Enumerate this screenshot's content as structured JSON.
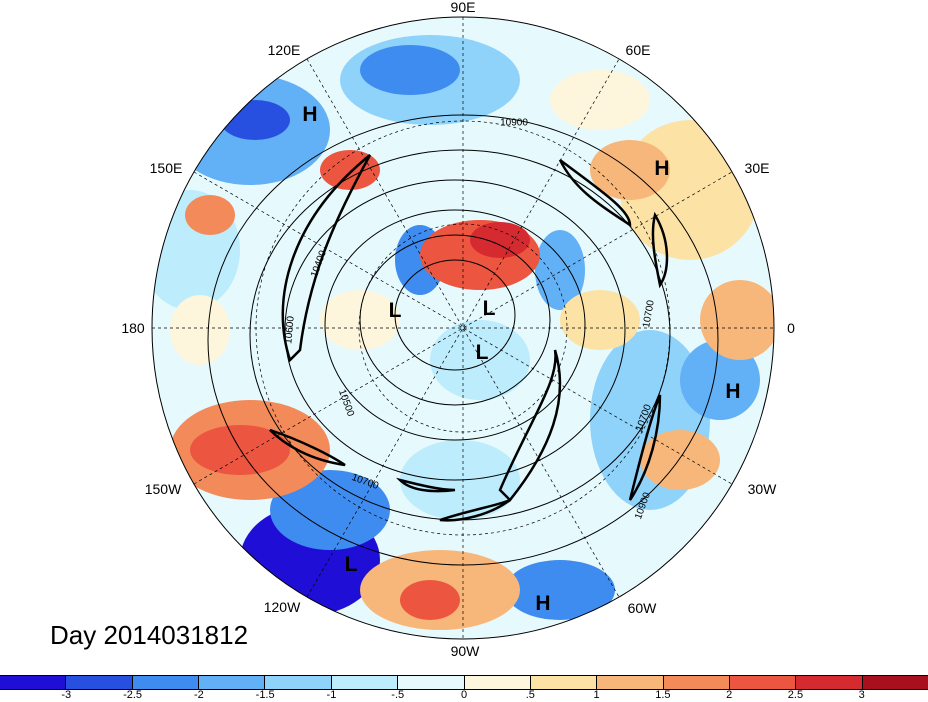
{
  "map": {
    "longitude_labels": [
      "90E",
      "60E",
      "30E",
      "0",
      "30W",
      "60W",
      "90W",
      "120W",
      "150W",
      "180",
      "150E",
      "120E"
    ],
    "pressure_systems": [
      "H",
      "H",
      "H",
      "H",
      "L",
      "L",
      "L",
      "L"
    ],
    "contour_labels": [
      "10900",
      "10700",
      "10500",
      "10700",
      "10700",
      "10900",
      "10400",
      "10600"
    ],
    "day_label": "Day 2014031812"
  },
  "colorbar": {
    "colors": [
      "#1f0fd6",
      "#2850e0",
      "#3f8cf0",
      "#62b0f5",
      "#8fd3fa",
      "#bdecfc",
      "#e6f9fc",
      "#fdf6dc",
      "#fde2a6",
      "#f7b77a",
      "#f28a5a",
      "#ec5540",
      "#d42a30",
      "#a8101e"
    ],
    "ticks": [
      "-3",
      "-2.5",
      "-2",
      "-1.5",
      "-1",
      "-.5",
      "0",
      ".5",
      "1",
      "1.5",
      "2",
      "2.5",
      "3"
    ]
  }
}
